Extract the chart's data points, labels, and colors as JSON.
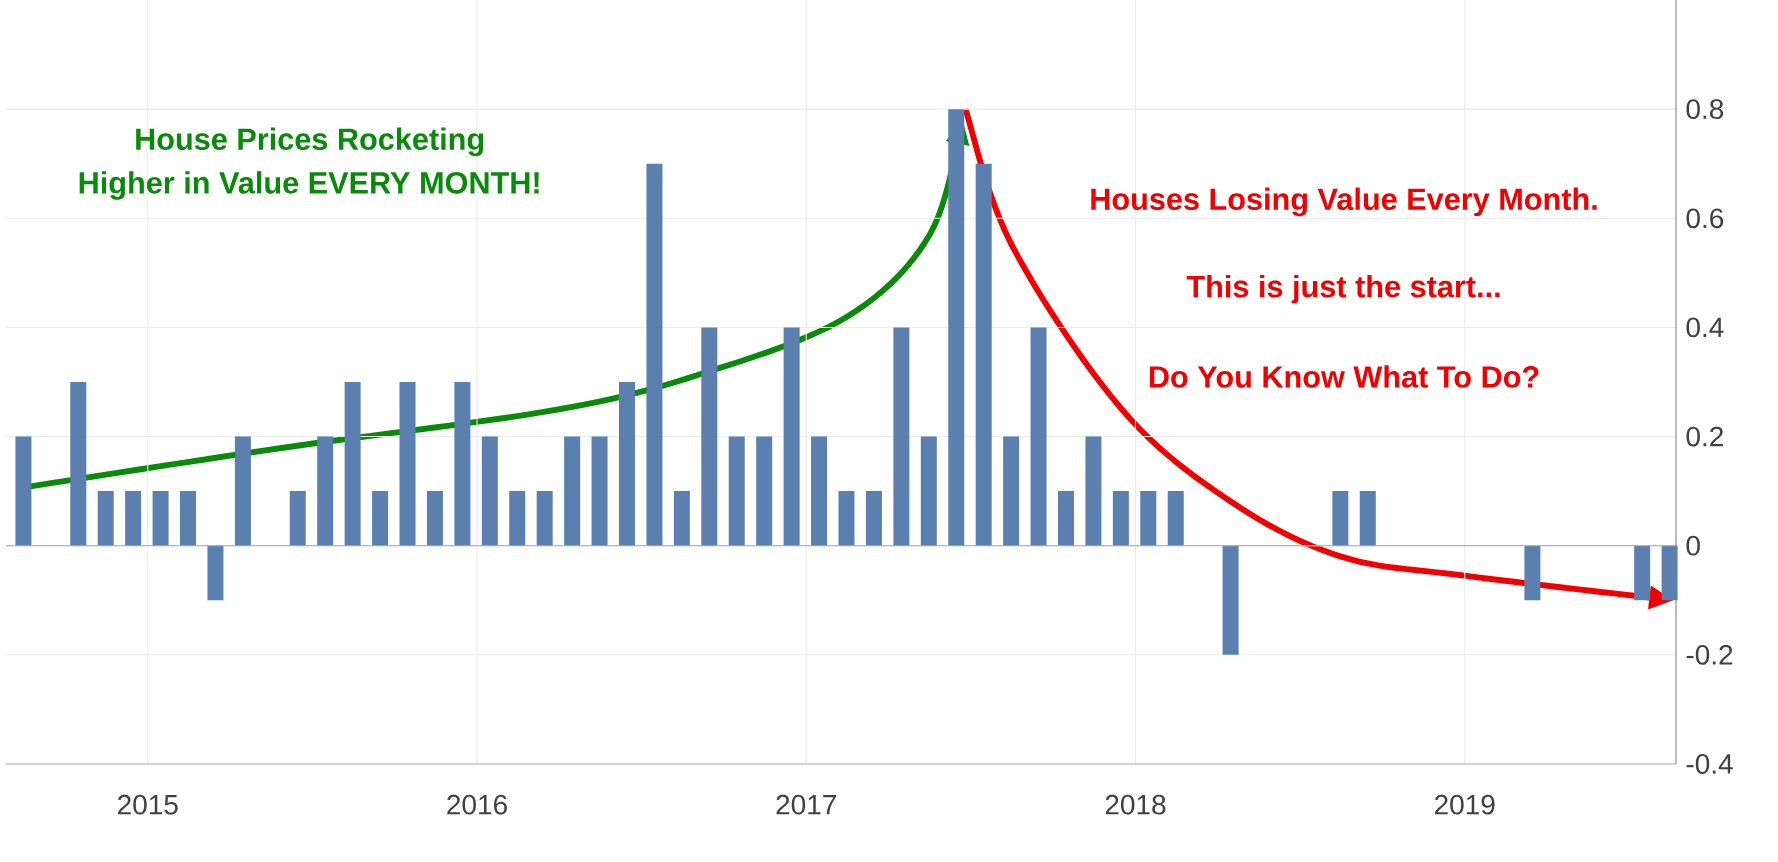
{
  "chart_data": {
    "type": "bar",
    "x": [
      "2014-08-15",
      "2014-09-15",
      "2014-10-15",
      "2014-11-15",
      "2014-12-15",
      "2015-01-15",
      "2015-02-15",
      "2015-03-15",
      "2015-04-15",
      "2015-05-15",
      "2015-06-15",
      "2015-07-15",
      "2015-08-15",
      "2015-09-15",
      "2015-10-15",
      "2015-11-15",
      "2015-12-15",
      "2016-01-15",
      "2016-02-15",
      "2016-03-15",
      "2016-04-15",
      "2016-05-15",
      "2016-06-15",
      "2016-07-15",
      "2016-08-15",
      "2016-09-15",
      "2016-10-15",
      "2016-11-15",
      "2016-12-15",
      "2017-01-15",
      "2017-02-15",
      "2017-03-15",
      "2017-04-15",
      "2017-05-15",
      "2017-06-15",
      "2017-07-15",
      "2017-08-15",
      "2017-09-15",
      "2017-10-15",
      "2017-11-15",
      "2017-12-15",
      "2018-01-15",
      "2018-02-15",
      "2018-03-15",
      "2018-04-15",
      "2018-05-15",
      "2018-06-15",
      "2018-07-15",
      "2018-08-15",
      "2018-09-15",
      "2018-10-15",
      "2018-11-15",
      "2018-12-15",
      "2019-01-15",
      "2019-02-15",
      "2019-03-15",
      "2019-04-15",
      "2019-05-15",
      "2019-06-15",
      "2019-07-15",
      "2019-08-15"
    ],
    "values": [
      0.2,
      0,
      0.3,
      0.1,
      0.1,
      0.1,
      0.1,
      -0.1,
      0.2,
      0,
      0.1,
      0.2,
      0.3,
      0.1,
      0.3,
      0.1,
      0.3,
      0.2,
      0.1,
      0.1,
      0.2,
      0.2,
      0.3,
      0.7,
      0.1,
      0.4,
      0.2,
      0.2,
      0.4,
      0.2,
      0.1,
      0.1,
      0.4,
      0.2,
      0.8,
      0.7,
      0.2,
      0.4,
      0.1,
      0.2,
      0.1,
      0.1,
      0.1,
      0,
      -0.2,
      0,
      0,
      0,
      0.1,
      0.1,
      0,
      0,
      0,
      0,
      0,
      -0.1,
      0,
      0,
      0,
      -0.1,
      -0.1
    ],
    "color": "#5b7fae",
    "xlim": [
      "2014-07-26",
      "2019-08-22"
    ],
    "xticks": [
      {
        "value": "2015-01",
        "label": "2015"
      },
      {
        "value": "2016-01",
        "label": "2016"
      },
      {
        "value": "2017-01",
        "label": "2017"
      },
      {
        "value": "2018-01",
        "label": "2018"
      },
      {
        "value": "2019-01",
        "label": "2019"
      }
    ],
    "ylim": [
      -0.4,
      1.0
    ],
    "yticks": [
      -0.4,
      -0.2,
      0,
      0.2,
      0.4,
      0.6,
      0.8
    ],
    "grid": true,
    "annotations": [
      "House Prices Rocketing",
      "Higher in Value EVERY MONTH!",
      "Houses Losing Value Every Month.",
      "This is just the start...",
      "Do You Know What To Do?"
    ]
  }
}
